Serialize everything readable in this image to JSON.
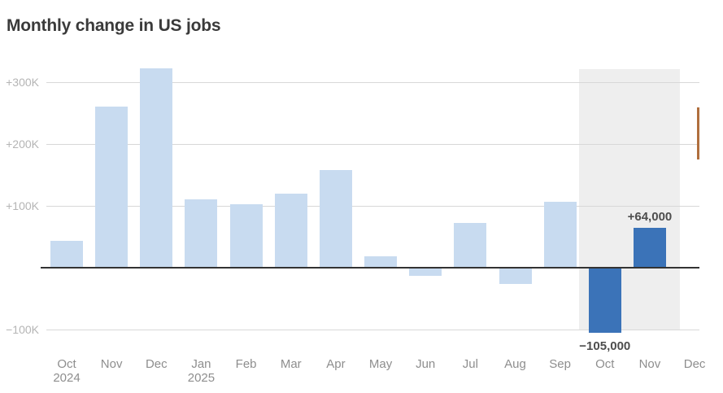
{
  "title": "Monthly change in US jobs",
  "colors": {
    "bar_default": "#c8dbf0",
    "bar_highlight": "#3b73b8",
    "highlight_band": "#eeeeee",
    "grid_line": "#d8d8d8",
    "zero_line": "#333333",
    "y_tick_text": "#b5b5b5",
    "x_tick_text": "#8e8e8e",
    "annotation_text": "#4d4d4d",
    "title_text": "#3a3a3a",
    "clipped_accent": "#b06f3e"
  },
  "chart_data": {
    "type": "bar",
    "title": "Monthly change in US jobs",
    "unit": "jobs, thousands",
    "categories": [
      "Oct 2024",
      "Nov 2024",
      "Dec 2024",
      "Jan 2025",
      "Feb 2025",
      "Mar 2025",
      "Apr 2025",
      "May 2025",
      "Jun 2025",
      "Jul 2025",
      "Aug 2025",
      "Sep 2025",
      "Oct 2025",
      "Nov 2025",
      "Dec 2025 (clipped)"
    ],
    "values": [
      44,
      261,
      323,
      111,
      102,
      120,
      158,
      19,
      -13,
      72,
      -26,
      107,
      -105,
      64,
      null
    ],
    "bars": [
      {
        "tick": "Oct",
        "year": "2024",
        "value_k": 44,
        "highlight": false
      },
      {
        "tick": "Nov",
        "value_k": 261,
        "highlight": false
      },
      {
        "tick": "Dec",
        "value_k": 323,
        "highlight": false
      },
      {
        "tick": "Jan",
        "year": "2025",
        "value_k": 111,
        "highlight": false
      },
      {
        "tick": "Feb",
        "value_k": 102,
        "highlight": false
      },
      {
        "tick": "Mar",
        "value_k": 120,
        "highlight": false
      },
      {
        "tick": "Apr",
        "value_k": 158,
        "highlight": false
      },
      {
        "tick": "May",
        "value_k": 19,
        "highlight": false
      },
      {
        "tick": "Jun",
        "value_k": -13,
        "highlight": false
      },
      {
        "tick": "Jul",
        "value_k": 72,
        "highlight": false
      },
      {
        "tick": "Aug",
        "value_k": -26,
        "highlight": false
      },
      {
        "tick": "Sep",
        "value_k": 107,
        "highlight": false
      },
      {
        "tick": "Oct",
        "value_k": -105,
        "highlight": true,
        "label": "−105,000"
      },
      {
        "tick": "Nov",
        "value_k": 64,
        "highlight": true,
        "label": "+64,000"
      },
      {
        "tick": "Dec",
        "value_k": null,
        "highlight": false,
        "partial": true
      }
    ],
    "y_axis": {
      "ticks": [
        {
          "label": "+300K",
          "value_k": 300
        },
        {
          "label": "+200K",
          "value_k": 200
        },
        {
          "label": "+100K",
          "value_k": 100
        },
        {
          "label": "−100K",
          "value_k": -100
        }
      ],
      "zero_baseline": true,
      "ylim_k": [
        -140,
        335
      ]
    },
    "highlight_band_covers": [
      "Oct 2025",
      "Nov 2025"
    ],
    "legend": "none",
    "grid": "horizontal"
  }
}
